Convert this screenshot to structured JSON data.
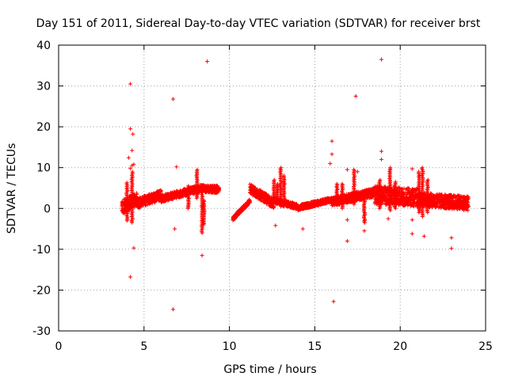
{
  "chart_data": {
    "type": "scatter",
    "title": "Day 151 of 2011, Sidereal Day-to-day VTEC variation (SDTVAR) for receiver brst",
    "xlabel": "GPS time / hours",
    "ylabel": "SDTVAR / TECUs",
    "xlim": [
      0,
      25
    ],
    "ylim": [
      -30,
      40
    ],
    "xticks": [
      0,
      5,
      10,
      15,
      20,
      25
    ],
    "yticks": [
      -30,
      -20,
      -10,
      0,
      10,
      20,
      30,
      40
    ],
    "xtick_labels": [
      "0",
      "5",
      "10",
      "15",
      "20",
      "25"
    ],
    "ytick_labels": [
      "-30",
      "-20",
      "-10",
      "0",
      "10",
      "20",
      "30",
      "40"
    ],
    "grid": true,
    "marker": "+",
    "color": "#ff0000",
    "series": [
      {
        "name": "SDTVAR",
        "bands": [
          {
            "x0": 3.7,
            "x1": 4.6,
            "y0": 0.5,
            "y1": 2.5,
            "lo": -2.0,
            "hi": 1.5
          },
          {
            "x0": 4.6,
            "x1": 6.0,
            "y0": 1.0,
            "y1": 3.0,
            "lo": -1.0,
            "hi": 1.5
          },
          {
            "x0": 6.0,
            "x1": 8.5,
            "y0": 2.5,
            "y1": 5.2,
            "lo": -1.0,
            "hi": 0.8
          },
          {
            "x0": 8.5,
            "x1": 9.4,
            "y0": 4.8,
            "y1": 4.8,
            "lo": -1.0,
            "hi": 0.8
          },
          {
            "x0": 10.2,
            "x1": 11.2,
            "y0": -2.5,
            "y1": 1.8,
            "lo": -0.5,
            "hi": 0.5
          },
          {
            "x0": 11.2,
            "x1": 12.6,
            "y0": 5.0,
            "y1": 1.5,
            "lo": -1.5,
            "hi": 1.0
          },
          {
            "x0": 12.6,
            "x1": 14.0,
            "y0": 2.0,
            "y1": 0.5,
            "lo": -0.8,
            "hi": 0.6
          },
          {
            "x0": 14.0,
            "x1": 16.0,
            "y0": 0.0,
            "y1": 2.0,
            "lo": -0.5,
            "hi": 0.8
          },
          {
            "x0": 16.0,
            "x1": 18.5,
            "y0": 1.5,
            "y1": 3.8,
            "lo": -1.0,
            "hi": 1.2
          },
          {
            "x0": 18.5,
            "x1": 21.0,
            "y0": 3.0,
            "y1": 2.5,
            "lo": -2.0,
            "hi": 2.5
          },
          {
            "x0": 21.0,
            "x1": 24.0,
            "y0": 2.5,
            "y1": 1.5,
            "lo": -2.0,
            "hi": 1.5
          }
        ],
        "spikes": [
          {
            "x": 4.0,
            "lo": -3.0,
            "hi": 6.0
          },
          {
            "x": 4.3,
            "lo": -3.5,
            "hi": 9.0
          },
          {
            "x": 7.6,
            "lo": 0.0,
            "hi": 5.5
          },
          {
            "x": 8.1,
            "lo": 2.5,
            "hi": 9.5
          },
          {
            "x": 8.4,
            "lo": -6.0,
            "hi": 5.0
          },
          {
            "x": 8.5,
            "lo": -4.0,
            "hi": 2.0
          },
          {
            "x": 12.6,
            "lo": 1.0,
            "hi": 7.0
          },
          {
            "x": 12.8,
            "lo": 1.0,
            "hi": 6.0
          },
          {
            "x": 13.0,
            "lo": 0.5,
            "hi": 10.0
          },
          {
            "x": 13.2,
            "lo": 0.5,
            "hi": 8.0
          },
          {
            "x": 16.3,
            "lo": 1.0,
            "hi": 6.0
          },
          {
            "x": 16.6,
            "lo": 0.0,
            "hi": 6.0
          },
          {
            "x": 17.3,
            "lo": 1.0,
            "hi": 9.5
          },
          {
            "x": 17.9,
            "lo": -3.5,
            "hi": 2.0
          },
          {
            "x": 18.8,
            "lo": 0.0,
            "hi": 7.0
          },
          {
            "x": 19.4,
            "lo": -0.5,
            "hi": 10.0
          },
          {
            "x": 19.7,
            "lo": 0.0,
            "hi": 6.5
          },
          {
            "x": 21.1,
            "lo": -1.0,
            "hi": 9.0
          },
          {
            "x": 21.3,
            "lo": -2.0,
            "hi": 10.0
          },
          {
            "x": 21.6,
            "lo": -1.0,
            "hi": 7.0
          }
        ],
        "points": [
          [
            4.2,
            30.5
          ],
          [
            4.2,
            19.5
          ],
          [
            4.35,
            18.2
          ],
          [
            4.3,
            14.2
          ],
          [
            4.1,
            12.4
          ],
          [
            4.3,
            10.5
          ],
          [
            4.2,
            9.8
          ],
          [
            4.4,
            10.8
          ],
          [
            4.0,
            6.3
          ],
          [
            4.2,
            -16.8
          ],
          [
            4.4,
            -9.7
          ],
          [
            6.7,
            26.8
          ],
          [
            6.7,
            -24.7
          ],
          [
            6.8,
            -5.0
          ],
          [
            6.9,
            10.2
          ],
          [
            8.7,
            36.0
          ],
          [
            8.4,
            -11.5
          ],
          [
            12.7,
            -4.2
          ],
          [
            14.3,
            -5.0
          ],
          [
            15.9,
            11.0
          ],
          [
            16.0,
            16.5
          ],
          [
            16.0,
            13.3
          ],
          [
            16.1,
            -22.8
          ],
          [
            16.9,
            9.5
          ],
          [
            16.9,
            -2.8
          ],
          [
            16.9,
            -8.0
          ],
          [
            17.4,
            27.5
          ],
          [
            17.5,
            9.0
          ],
          [
            17.9,
            -5.5
          ],
          [
            18.9,
            36.5
          ],
          [
            18.9,
            14.0
          ],
          [
            18.9,
            12.0
          ],
          [
            19.3,
            -2.5
          ],
          [
            20.7,
            9.7
          ],
          [
            20.7,
            -2.8
          ],
          [
            20.7,
            -6.2
          ],
          [
            21.4,
            -6.8
          ],
          [
            23.0,
            -7.2
          ],
          [
            23.0,
            -9.8
          ]
        ]
      }
    ]
  }
}
